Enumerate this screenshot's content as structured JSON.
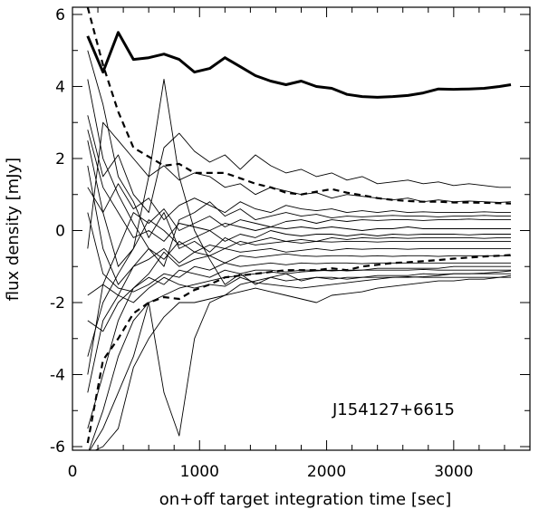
{
  "chart_data": {
    "type": "line",
    "xlabel": "on+off target integration time [sec]",
    "ylabel": "flux density [mJy]",
    "annotation": "J154127+6615",
    "xlim": [
      0,
      3600
    ],
    "ylim": [
      -6.1,
      6.2
    ],
    "grid": false,
    "x_ticks": [
      0,
      1000,
      2000,
      3000
    ],
    "x_tick_labels": [
      "0",
      "1000",
      "2000",
      "3000"
    ],
    "y_ticks": [
      -6,
      -4,
      -2,
      0,
      2,
      4,
      6
    ],
    "y_tick_labels": [
      "-6",
      "-4",
      "-2",
      "0",
      "2",
      "4",
      "6"
    ],
    "x": [
      120,
      240,
      360,
      480,
      600,
      720,
      840,
      960,
      1080,
      1200,
      1320,
      1440,
      1560,
      1680,
      1800,
      1920,
      2040,
      2160,
      2280,
      2400,
      2520,
      2640,
      2760,
      2880,
      3000,
      3120,
      3240,
      3360,
      3450
    ],
    "series": [
      {
        "style": "thick",
        "values": [
          5.4,
          4.4,
          5.5,
          4.75,
          4.8,
          4.9,
          4.75,
          4.4,
          4.5,
          4.8,
          4.55,
          4.3,
          4.15,
          4.05,
          4.15,
          4.0,
          3.95,
          3.78,
          3.72,
          3.7,
          3.72,
          3.75,
          3.82,
          3.93,
          3.92,
          3.93,
          3.95,
          4.0,
          4.05
        ]
      },
      {
        "style": "dashed",
        "values": [
          6.2,
          4.6,
          3.3,
          2.3,
          2.05,
          1.8,
          1.85,
          1.6,
          1.6,
          1.6,
          1.45,
          1.3,
          1.2,
          1.05,
          1.0,
          1.08,
          1.15,
          1.05,
          0.98,
          0.9,
          0.85,
          0.82,
          0.8,
          0.8,
          0.78,
          0.78,
          0.77,
          0.76,
          0.75
        ]
      },
      {
        "style": "dashed",
        "values": [
          -5.9,
          -3.6,
          -3.0,
          -2.3,
          -2.0,
          -1.85,
          -1.9,
          -1.65,
          -1.5,
          -1.3,
          -1.25,
          -1.2,
          -1.15,
          -1.1,
          -1.1,
          -1.1,
          -1.05,
          -1.1,
          -1.0,
          -0.95,
          -0.9,
          -0.88,
          -0.85,
          -0.82,
          -0.78,
          -0.75,
          -0.72,
          -0.7,
          -0.68
        ]
      },
      {
        "style": "thin",
        "values": [
          3.2,
          1.5,
          2.1,
          1.0,
          0.5,
          2.3,
          2.7,
          2.2,
          1.9,
          2.1,
          1.7,
          2.1,
          1.8,
          1.6,
          1.7,
          1.5,
          1.6,
          1.4,
          1.5,
          1.3,
          1.35,
          1.4,
          1.3,
          1.35,
          1.25,
          1.3,
          1.25,
          1.2,
          1.2
        ]
      },
      {
        "style": "thin",
        "values": [
          -0.5,
          3.0,
          2.5,
          2.0,
          1.5,
          1.8,
          1.4,
          1.6,
          1.5,
          1.2,
          1.3,
          1.0,
          1.2,
          1.1,
          1.0,
          1.05,
          0.9,
          1.0,
          0.95,
          0.9,
          0.85,
          0.9,
          0.8,
          0.85,
          0.8,
          0.82,
          0.8,
          0.78,
          0.8
        ]
      },
      {
        "style": "thin",
        "values": [
          1.2,
          0.5,
          1.3,
          0.6,
          0.9,
          0.3,
          0.7,
          0.9,
          0.7,
          0.5,
          0.8,
          0.6,
          0.5,
          0.7,
          0.6,
          0.55,
          0.6,
          0.5,
          0.55,
          0.5,
          0.55,
          0.5,
          0.52,
          0.5,
          0.5,
          0.5,
          0.52,
          0.5,
          0.5
        ]
      },
      {
        "style": "thin",
        "values": [
          4.2,
          2.0,
          1.0,
          0.2,
          -0.5,
          -1.0,
          0.3,
          0.5,
          0.8,
          0.4,
          0.6,
          0.3,
          0.4,
          0.5,
          0.4,
          0.45,
          0.35,
          0.4,
          0.38,
          0.4,
          0.42,
          0.4,
          0.4,
          0.38,
          0.4,
          0.4,
          0.42,
          0.4,
          0.4
        ]
      },
      {
        "style": "thin",
        "values": [
          -1.8,
          -1.5,
          -0.5,
          0.5,
          0.2,
          0.6,
          0.0,
          0.2,
          0.4,
          0.1,
          0.3,
          0.2,
          0.1,
          0.25,
          0.3,
          0.2,
          0.3,
          0.25,
          0.3,
          0.28,
          0.3,
          0.3,
          0.28,
          0.3,
          0.3,
          0.32,
          0.3,
          0.3,
          0.3
        ]
      },
      {
        "style": "thin",
        "values": [
          2.8,
          1.2,
          0.5,
          -0.2,
          0.0,
          -0.3,
          0.2,
          0.1,
          0.0,
          0.2,
          0.1,
          0.0,
          0.1,
          0.05,
          0.1,
          0.05,
          0.1,
          0.05,
          0.0,
          0.05,
          0.05,
          0.1,
          0.05,
          0.05,
          0.05,
          0.05,
          0.05,
          0.05,
          0.05
        ]
      },
      {
        "style": "thin",
        "values": [
          -3.5,
          -2.0,
          -1.2,
          -0.5,
          0.3,
          0.0,
          -0.4,
          -0.2,
          0.0,
          -0.3,
          -0.1,
          -0.2,
          0.0,
          -0.1,
          -0.15,
          -0.1,
          -0.1,
          -0.15,
          -0.1,
          -0.15,
          -0.1,
          -0.12,
          -0.1,
          -0.1,
          -0.1,
          -0.12,
          -0.1,
          -0.1,
          -0.1
        ]
      },
      {
        "style": "thin",
        "values": [
          5.0,
          3.5,
          1.5,
          0.8,
          -0.2,
          0.5,
          -0.5,
          -0.3,
          -0.6,
          -0.2,
          -0.4,
          -0.3,
          -0.2,
          -0.3,
          -0.25,
          -0.3,
          -0.2,
          -0.25,
          -0.2,
          -0.22,
          -0.2,
          -0.22,
          -0.2,
          -0.2,
          -0.2,
          -0.2,
          -0.22,
          -0.2,
          -0.2
        ]
      },
      {
        "style": "thin",
        "values": [
          -4.5,
          -2.5,
          -1.8,
          -1.0,
          -0.5,
          -0.8,
          -0.3,
          -0.6,
          -0.4,
          -0.5,
          -0.3,
          -0.4,
          -0.35,
          -0.3,
          -0.35,
          -0.3,
          -0.32,
          -0.3,
          -0.3,
          -0.32,
          -0.3,
          -0.3,
          -0.3,
          -0.3,
          -0.3,
          -0.3,
          -0.3,
          -0.3,
          -0.3
        ]
      },
      {
        "style": "thin",
        "values": [
          1.8,
          -0.5,
          -1.5,
          -1.0,
          -0.8,
          -0.5,
          -0.9,
          -0.6,
          -0.7,
          -0.5,
          -0.6,
          -0.55,
          -0.5,
          -0.6,
          -0.55,
          -0.5,
          -0.55,
          -0.5,
          -0.52,
          -0.5,
          -0.5,
          -0.52,
          -0.5,
          -0.5,
          -0.5,
          -0.5,
          -0.5,
          -0.5,
          -0.5
        ]
      },
      {
        "style": "thin",
        "values": [
          -5.5,
          -4.0,
          -2.5,
          -1.6,
          -1.2,
          -0.6,
          -1.0,
          -0.8,
          -0.7,
          -0.9,
          -0.7,
          -0.75,
          -0.7,
          -0.65,
          -0.7,
          -0.72,
          -0.7,
          -0.7,
          -0.72,
          -0.7,
          -0.72,
          -0.7,
          -0.7,
          -0.72,
          -0.7,
          -0.7,
          -0.7,
          -0.7,
          -0.7
        ]
      },
      {
        "style": "thin",
        "values": [
          0.5,
          -1.2,
          -1.6,
          -1.7,
          -1.5,
          -1.2,
          -1.3,
          -1.0,
          -1.1,
          -0.9,
          -1.0,
          -0.95,
          -0.9,
          -0.95,
          -0.9,
          -0.92,
          -0.9,
          -0.9,
          -0.92,
          -0.9,
          -0.9,
          -0.9,
          -0.9,
          -0.9,
          -0.9,
          -0.9,
          -0.9,
          -0.9,
          -0.9
        ]
      },
      {
        "style": "thin",
        "values": [
          -2.5,
          -2.8,
          -2.0,
          -1.6,
          -1.3,
          -1.5,
          -1.1,
          -1.2,
          -1.3,
          -1.1,
          -1.2,
          -1.1,
          -1.1,
          -1.15,
          -1.1,
          -1.1,
          -1.12,
          -1.1,
          -1.1,
          -1.05,
          -1.05,
          -1.05,
          -1.05,
          -1.05,
          -1.0,
          -1.0,
          -1.0,
          -1.0,
          -1.0
        ]
      },
      {
        "style": "thin",
        "values": [
          -6.2,
          -5.0,
          -3.5,
          -2.5,
          -2.0,
          -1.8,
          -1.6,
          -1.5,
          -1.4,
          -1.3,
          -1.25,
          -1.2,
          -1.15,
          -1.2,
          -1.15,
          -1.12,
          -1.1,
          -1.12,
          -1.1,
          -1.1,
          -1.1,
          -1.1,
          -1.08,
          -1.1,
          -1.1,
          -1.1,
          -1.1,
          -1.1,
          -1.1
        ]
      },
      {
        "style": "thin",
        "values": [
          -6.2,
          -5.5,
          -4.5,
          -3.5,
          -2.0,
          -4.5,
          -5.7,
          -3.0,
          -2.0,
          -1.8,
          -1.5,
          -1.4,
          -1.3,
          -1.4,
          -1.35,
          -1.3,
          -1.35,
          -1.3,
          -1.3,
          -1.25,
          -1.25,
          -1.25,
          -1.2,
          -1.22,
          -1.2,
          -1.2,
          -1.2,
          -1.2,
          -1.2
        ]
      },
      {
        "style": "thin",
        "values": [
          2.5,
          0.5,
          -1.0,
          -0.5,
          1.5,
          4.2,
          1.5,
          0.0,
          -0.8,
          -1.5,
          -1.2,
          -1.5,
          -1.3,
          -1.2,
          -1.4,
          -1.3,
          -1.3,
          -1.35,
          -1.3,
          -1.3,
          -1.3,
          -1.28,
          -1.3,
          -1.3,
          -1.3,
          -1.3,
          -1.3,
          -1.3,
          -1.3
        ]
      },
      {
        "style": "thin",
        "values": [
          -6.2,
          -6.0,
          -5.5,
          -3.8,
          -3.0,
          -2.4,
          -2.0,
          -2.0,
          -1.9,
          -1.8,
          -1.7,
          -1.6,
          -1.7,
          -1.8,
          -1.9,
          -2.0,
          -1.8,
          -1.75,
          -1.7,
          -1.6,
          -1.55,
          -1.5,
          -1.45,
          -1.4,
          -1.4,
          -1.35,
          -1.35,
          -1.3,
          -1.25
        ]
      },
      {
        "style": "thin",
        "values": [
          -4.0,
          -1.5,
          -1.8,
          -2.0,
          -1.6,
          -1.3,
          -1.5,
          -1.6,
          -1.5,
          -1.55,
          -1.3,
          -1.45,
          -1.5,
          -1.55,
          -1.6,
          -1.55,
          -1.5,
          -1.45,
          -1.4,
          -1.35,
          -1.3,
          -1.3,
          -1.28,
          -1.25,
          -1.2,
          -1.2,
          -1.18,
          -1.15,
          -1.12
        ]
      }
    ]
  }
}
